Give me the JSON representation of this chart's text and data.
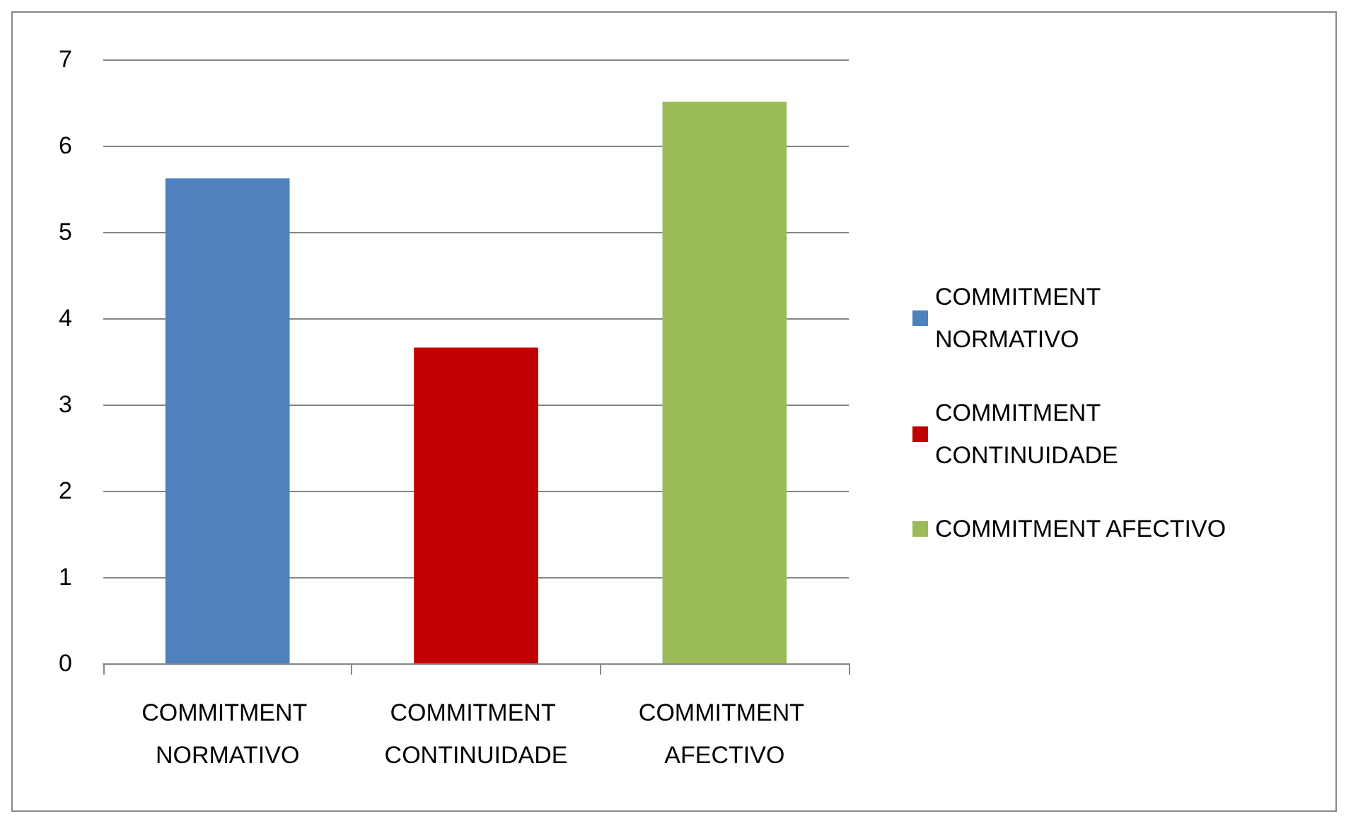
{
  "chart_data": {
    "type": "bar",
    "categories": [
      "COMMITMENT NORMATIVO",
      "COMMITMENT CONTINUIDADE",
      "COMMITMENT AFECTIVO"
    ],
    "series": [
      {
        "name": "COMMITMENT NORMATIVO",
        "color": "#4f81bd",
        "values": [
          5.62,
          null,
          null
        ]
      },
      {
        "name": "COMMITMENT CONTINUIDADE",
        "color": "#c00000",
        "values": [
          null,
          3.66,
          null
        ]
      },
      {
        "name": "COMMITMENT AFECTIVO",
        "color": "#9bbb59",
        "values": [
          null,
          null,
          6.51
        ]
      }
    ],
    "ylim": [
      0,
      7
    ],
    "yticks": [
      0,
      1,
      2,
      3,
      4,
      5,
      6,
      7
    ],
    "grid": "y",
    "legend": "right"
  }
}
